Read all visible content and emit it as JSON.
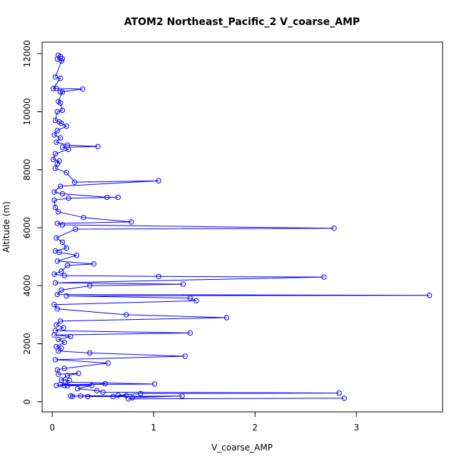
{
  "chart_data": {
    "type": "line",
    "title": "ATOM2 Northeast_Pacific_2 V_coarse_AMP",
    "xlabel": "V_coarse_AMP",
    "ylabel": "Altitude (m)",
    "xlim": [
      -0.1,
      3.85
    ],
    "ylim": [
      -350,
      12400
    ],
    "x_ticks": [
      0,
      1,
      2,
      3
    ],
    "y_ticks": [
      0,
      2000,
      4000,
      6000,
      8000,
      10000,
      12000
    ],
    "grid": false,
    "marker": "open-circle",
    "color": "#0000ff",
    "series": [
      {
        "points": [
          [
            0.06,
            11950
          ],
          [
            0.08,
            11900
          ],
          [
            0.05,
            11820
          ],
          [
            0.09,
            11750
          ],
          [
            0.1,
            11830
          ],
          [
            0.03,
            11200
          ],
          [
            0.08,
            11150
          ],
          [
            0.01,
            10800
          ],
          [
            0.04,
            10800
          ],
          [
            0.3,
            10780
          ],
          [
            0.08,
            10680
          ],
          [
            0.1,
            10680
          ],
          [
            0.06,
            10350
          ],
          [
            0.08,
            10300
          ],
          [
            0.1,
            10050
          ],
          [
            0.05,
            10000
          ],
          [
            0.03,
            9700
          ],
          [
            0.07,
            9650
          ],
          [
            0.09,
            9600
          ],
          [
            0.14,
            9500
          ],
          [
            0.05,
            9350
          ],
          [
            0.02,
            9200
          ],
          [
            0.08,
            9100
          ],
          [
            0.04,
            8950
          ],
          [
            0.15,
            8850
          ],
          [
            0.45,
            8800
          ],
          [
            0.1,
            8780
          ],
          [
            0.16,
            8700
          ],
          [
            0.03,
            8550
          ],
          [
            0.01,
            8350
          ],
          [
            0.07,
            8300
          ],
          [
            0.05,
            8200
          ],
          [
            0.03,
            8050
          ],
          [
            0.14,
            7900
          ],
          [
            0.22,
            7570
          ],
          [
            1.05,
            7620
          ],
          [
            0.08,
            7430
          ],
          [
            0.02,
            7230
          ],
          [
            0.1,
            7170
          ],
          [
            0.54,
            7050
          ],
          [
            0.65,
            7050
          ],
          [
            0.16,
            7020
          ],
          [
            0.02,
            6950
          ],
          [
            0.03,
            6700
          ],
          [
            0.06,
            6550
          ],
          [
            0.31,
            6350
          ],
          [
            0.78,
            6200
          ],
          [
            0.05,
            6150
          ],
          [
            0.1,
            6100
          ],
          [
            2.78,
            5980
          ],
          [
            0.23,
            5950
          ],
          [
            0.04,
            5650
          ],
          [
            0.1,
            5500
          ],
          [
            0.14,
            5300
          ],
          [
            0.03,
            5200
          ],
          [
            0.07,
            5150
          ],
          [
            0.24,
            5050
          ],
          [
            0.05,
            4850
          ],
          [
            0.41,
            4750
          ],
          [
            0.15,
            4700
          ],
          [
            0.09,
            4500
          ],
          [
            0.02,
            4400
          ],
          [
            0.12,
            4350
          ],
          [
            1.05,
            4320
          ],
          [
            2.68,
            4300
          ],
          [
            0.03,
            4100
          ],
          [
            1.29,
            4050
          ],
          [
            0.37,
            4000
          ],
          [
            0.09,
            3850
          ],
          [
            0.05,
            3700
          ],
          [
            3.72,
            3670
          ],
          [
            0.14,
            3650
          ],
          [
            1.36,
            3570
          ],
          [
            1.42,
            3480
          ],
          [
            0.02,
            3350
          ],
          [
            0.05,
            3200
          ],
          [
            0.73,
            3000
          ],
          [
            1.72,
            2900
          ],
          [
            0.08,
            2780
          ],
          [
            0.04,
            2650
          ],
          [
            0.11,
            2550
          ],
          [
            0.03,
            2450
          ],
          [
            1.36,
            2370
          ],
          [
            0.02,
            2300
          ],
          [
            0.18,
            2250
          ],
          [
            0.06,
            2150
          ],
          [
            0.12,
            2050
          ],
          [
            0.04,
            1900
          ],
          [
            0.09,
            1850
          ],
          [
            0.06,
            1750
          ],
          [
            0.37,
            1680
          ],
          [
            1.31,
            1570
          ],
          [
            0.03,
            1450
          ],
          [
            0.55,
            1330
          ],
          [
            0.12,
            1150
          ],
          [
            0.05,
            1100
          ],
          [
            0.06,
            950
          ],
          [
            0.26,
            980
          ],
          [
            0.15,
            900
          ],
          [
            0.09,
            750
          ],
          [
            0.17,
            740
          ],
          [
            0.13,
            680
          ],
          [
            1.01,
            610
          ],
          [
            0.08,
            590
          ],
          [
            0.12,
            560
          ],
          [
            0.04,
            560
          ],
          [
            0.52,
            620
          ],
          [
            0.15,
            550
          ],
          [
            0.39,
            560
          ],
          [
            0.25,
            450
          ],
          [
            0.44,
            380
          ],
          [
            0.5,
            330
          ],
          [
            2.83,
            300
          ],
          [
            0.87,
            280
          ],
          [
            0.65,
            220
          ],
          [
            0.73,
            210
          ],
          [
            0.18,
            200
          ],
          [
            0.2,
            190
          ],
          [
            0.28,
            200
          ],
          [
            0.35,
            180
          ],
          [
            0.6,
            180
          ],
          [
            1.28,
            200
          ],
          [
            0.79,
            140
          ],
          [
            0.75,
            100
          ],
          [
            2.88,
            120
          ]
        ]
      }
    ]
  }
}
